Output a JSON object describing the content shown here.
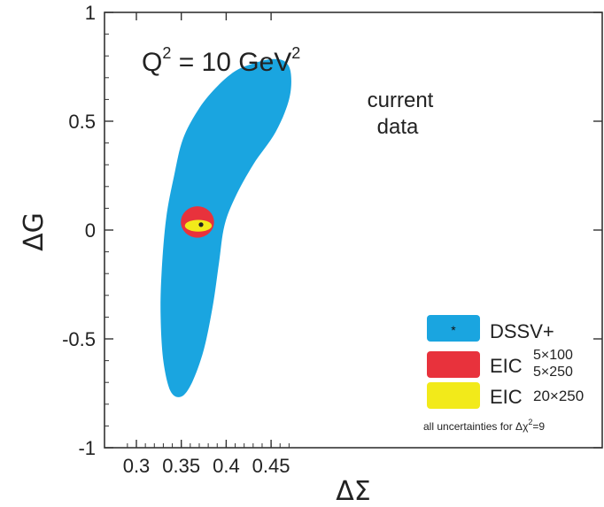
{
  "chart_data": {
    "type": "contour",
    "xlabel": "ΔΣ",
    "ylabel": "ΔG",
    "xlim": [
      0.29,
      0.475
    ],
    "ylim": [
      -1,
      1
    ],
    "xticks": [
      "0.3",
      "0.35",
      "0.4",
      "0.45"
    ],
    "xtick_values": [
      0.3,
      0.35,
      0.4,
      0.45
    ],
    "yticks": [
      "1",
      "0.5",
      "0",
      "-0.5",
      "-1"
    ],
    "ytick_values": [
      1,
      0.5,
      0,
      -0.5,
      -1
    ],
    "grid": false,
    "legend_placement": "bottom-right",
    "annotation": {
      "q_base": "Q",
      "q_exp": "2",
      "q_rest": " = 10 GeV",
      "q_unit_exp": "2",
      "region_line1": "current",
      "region_line2": "data"
    },
    "best_fit": {
      "x": 0.372,
      "y": 0.025
    },
    "series": [
      {
        "name": "DSSV+",
        "color": "#1aa5e0",
        "outline": [
          [
            0.352,
            0.42
          ],
          [
            0.37,
            0.56
          ],
          [
            0.39,
            0.66
          ],
          [
            0.41,
            0.73
          ],
          [
            0.43,
            0.765
          ],
          [
            0.45,
            0.785
          ],
          [
            0.465,
            0.775
          ],
          [
            0.472,
            0.72
          ],
          [
            0.47,
            0.6
          ],
          [
            0.455,
            0.45
          ],
          [
            0.43,
            0.3
          ],
          [
            0.41,
            0.15
          ],
          [
            0.398,
            0.02
          ],
          [
            0.392,
            -0.15
          ],
          [
            0.385,
            -0.35
          ],
          [
            0.375,
            -0.55
          ],
          [
            0.362,
            -0.7
          ],
          [
            0.35,
            -0.765
          ],
          [
            0.338,
            -0.74
          ],
          [
            0.33,
            -0.6
          ],
          [
            0.327,
            -0.4
          ],
          [
            0.328,
            -0.2
          ],
          [
            0.333,
            0.05
          ],
          [
            0.342,
            0.25
          ]
        ]
      },
      {
        "name_prefix": "EIC",
        "name_sup": "5×100",
        "name_sub": "5×250",
        "color": "#e8323c",
        "ellipse": {
          "cx": 0.368,
          "cy": 0.037,
          "rx": 0.0185,
          "ry": 0.072
        }
      },
      {
        "name_prefix": "EIC",
        "name_sub": "20×250",
        "color": "#f2ea1a",
        "ellipse": {
          "cx": 0.369,
          "cy": 0.02,
          "rx": 0.015,
          "ry": 0.027
        }
      }
    ],
    "footnote_prefix": "all uncertainties for Δχ",
    "footnote_exp": "2",
    "footnote_suffix": "=9"
  }
}
